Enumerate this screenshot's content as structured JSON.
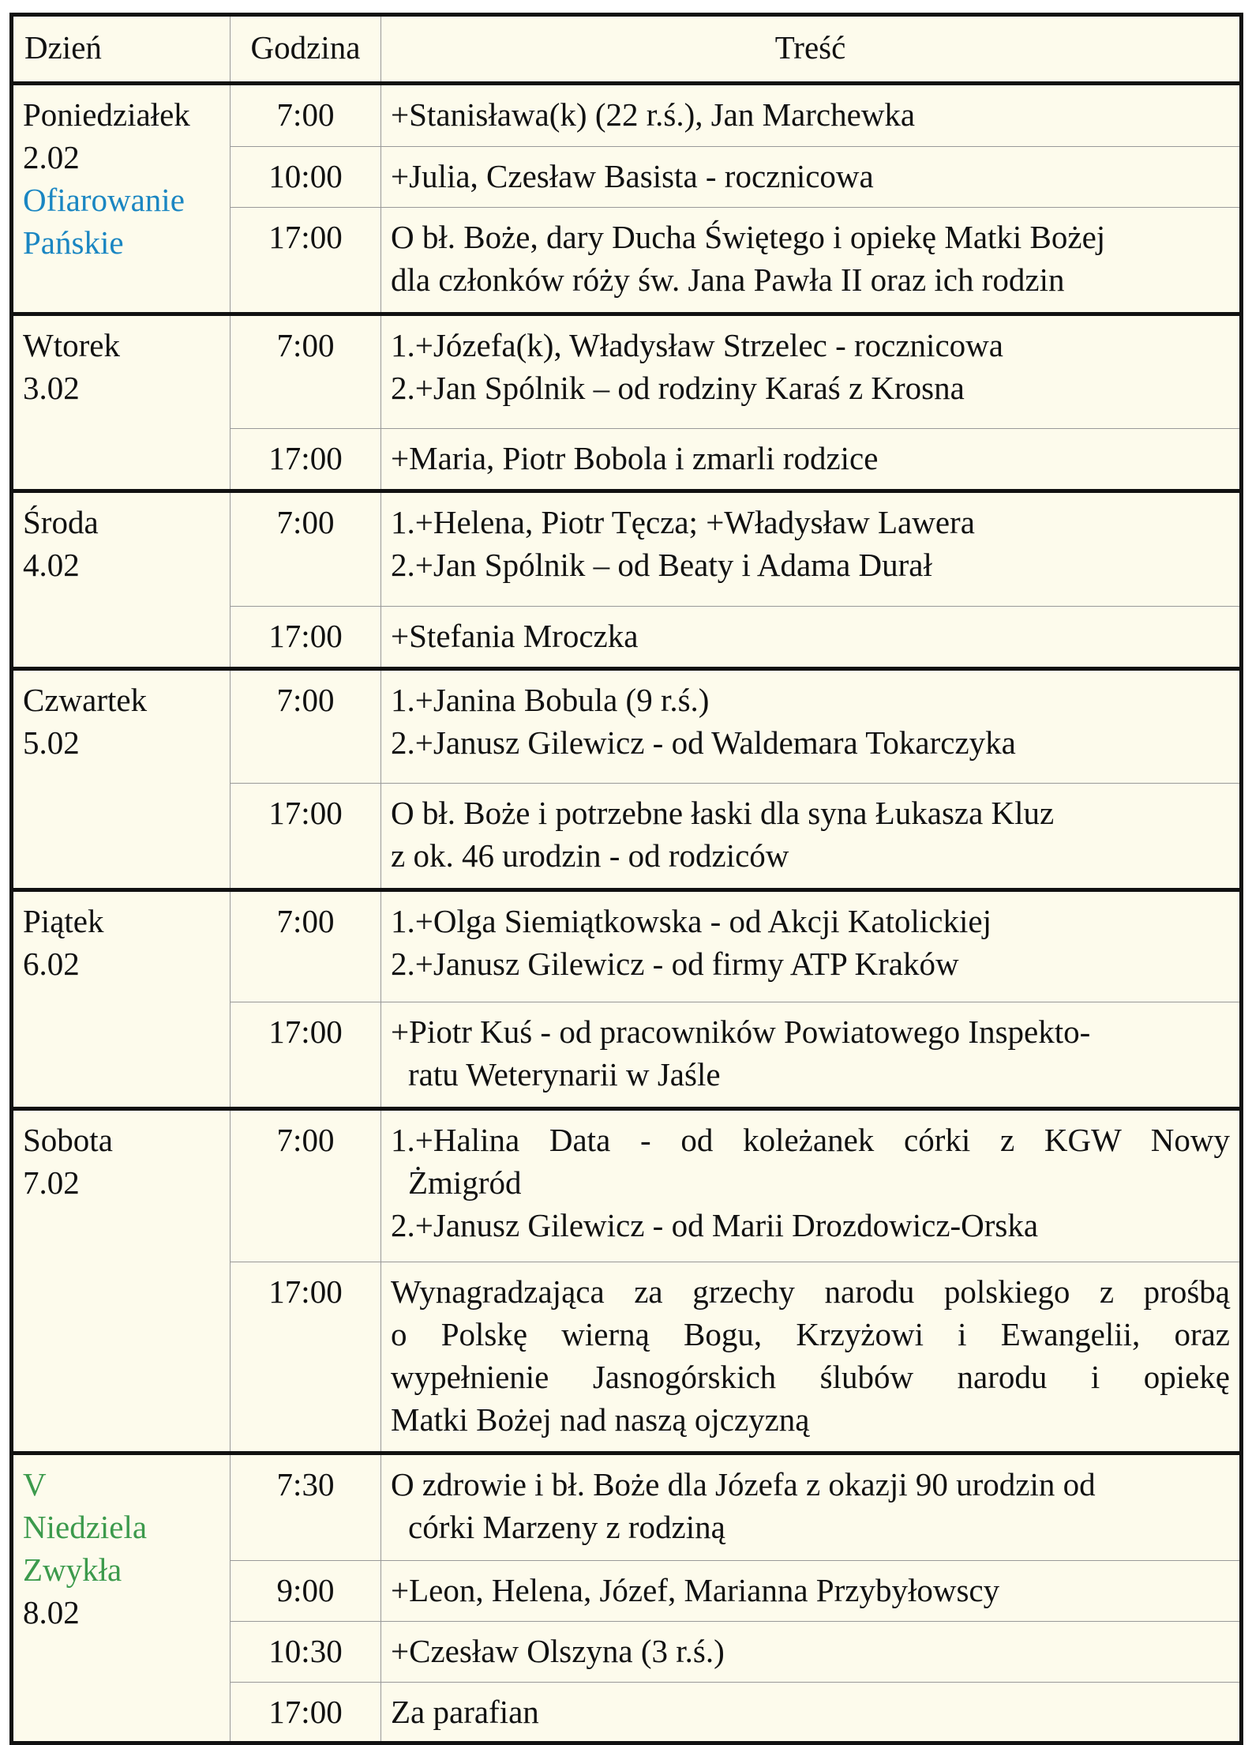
{
  "colors": {
    "feast_blue": "#1a86c2",
    "sunday_green": "#3c9a4c",
    "background": "#fdfbec"
  },
  "header": {
    "day": "Dzień",
    "hour": "Godzina",
    "content": "Treść"
  },
  "days": [
    {
      "name": [
        {
          "t": "Poniedziałek"
        },
        {
          "t": "2.02"
        },
        {
          "t": "Ofiarowanie",
          "c": "blue"
        },
        {
          "t": "Pańskie",
          "c": "blue"
        }
      ],
      "masses": [
        {
          "time": "7:00",
          "lines": [
            {
              "t": "+Stanisława(k) (22 r.ś.), Jan Marchewka"
            }
          ]
        },
        {
          "time": "10:00",
          "lines": [
            {
              "t": "+Julia, Czesław Basista - rocznicowa"
            }
          ]
        },
        {
          "time": "17:00",
          "lines": [
            {
              "t": "O bł. Boże, dary Ducha Świętego i opiekę Matki Bożej"
            },
            {
              "t": "dla członków róży św. Jana Pawła II oraz ich rodzin"
            }
          ]
        }
      ]
    },
    {
      "name": [
        {
          "t": "Wtorek"
        },
        {
          "t": "3.02"
        }
      ],
      "masses": [
        {
          "time": "7:00",
          "lines": [
            {
              "t": "1.+Józefa(k), Władysław Strzelec - rocznicowa"
            },
            {
              "t": "2.+Jan Spólnik – od rodziny Karaś z Krosna"
            }
          ]
        },
        {
          "time": "17:00",
          "lines": [
            {
              "t": "+Maria, Piotr Bobola i zmarli rodzice"
            }
          ]
        }
      ]
    },
    {
      "name": [
        {
          "t": "Środa"
        },
        {
          "t": "4.02"
        }
      ],
      "masses": [
        {
          "time": "7:00",
          "lines": [
            {
              "t": "1.+Helena, Piotr Tęcza; +Władysław Lawera"
            },
            {
              "t": "2.+Jan Spólnik – od Beaty i Adama Durał"
            }
          ]
        },
        {
          "time": "17:00",
          "lines": [
            {
              "t": "+Stefania Mroczka"
            }
          ]
        }
      ]
    },
    {
      "name": [
        {
          "t": "Czwartek"
        },
        {
          "t": "5.02"
        }
      ],
      "masses": [
        {
          "time": "7:00",
          "lines": [
            {
              "t": "1.+Janina Bobula (9 r.ś.)"
            },
            {
              "t": "2.+Janusz Gilewicz - od Waldemara Tokarczyka"
            }
          ]
        },
        {
          "time": "17:00",
          "lines": [
            {
              "t": "O bł. Boże i potrzebne łaski dla syna Łukasza Kluz"
            },
            {
              "t": "z ok. 46 urodzin - od rodziców"
            }
          ]
        }
      ]
    },
    {
      "name": [
        {
          "t": "Piątek"
        },
        {
          "t": "6.02"
        }
      ],
      "masses": [
        {
          "time": "7:00",
          "lines": [
            {
              "t": "1.+Olga Siemiątkowska - od Akcji Katolickiej"
            },
            {
              "t": "2.+Janusz Gilewicz - od firmy ATP Kraków"
            }
          ]
        },
        {
          "time": "17:00",
          "lines": [
            {
              "t": "+Piotr Kuś - od pracowników Powiatowego Inspekto-"
            },
            {
              "t": "ratu Weterynarii w Jaśle",
              "indent": true
            }
          ]
        }
      ]
    },
    {
      "name": [
        {
          "t": "Sobota"
        },
        {
          "t": "7.02"
        }
      ],
      "masses": [
        {
          "time": "7:00",
          "lines": [
            {
              "t": "1.+Halina Data - od koleżanek córki z KGW Nowy",
              "justify": true
            },
            {
              "t": "Żmigród",
              "indent": true
            },
            {
              "t": "2.+Janusz Gilewicz - od Marii Drozdowicz-Orska"
            }
          ]
        },
        {
          "time": "17:00",
          "lines": [
            {
              "t": "Wynagradzająca za grzechy narodu polskiego z prośbą",
              "justify": true
            },
            {
              "t": "o Polskę wierną Bogu, Krzyżowi i Ewangelii, oraz",
              "justify": true
            },
            {
              "t": "wypełnienie Jasnogórskich ślubów narodu i opiekę",
              "justify": true
            },
            {
              "t": "Matki Bożej nad naszą ojczyzną"
            }
          ]
        }
      ]
    },
    {
      "name": [
        {
          "t": "V",
          "c": "green"
        },
        {
          "t": "Niedziela",
          "c": "green"
        },
        {
          "t": "Zwykła",
          "c": "green"
        },
        {
          "t": "8.02"
        }
      ],
      "masses": [
        {
          "time": "7:30",
          "lines": [
            {
              "t": "O zdrowie i bł. Boże dla Józefa z okazji 90 urodzin od"
            },
            {
              "t": "córki Marzeny z rodziną",
              "indent": true
            }
          ]
        },
        {
          "time": "9:00",
          "lines": [
            {
              "t": "+Leon, Helena, Józef, Marianna Przybyłowscy"
            }
          ]
        },
        {
          "time": "10:30",
          "lines": [
            {
              "t": "+Czesław Olszyna (3 r.ś.)"
            }
          ]
        },
        {
          "time": "17:00",
          "lines": [
            {
              "t": "Za parafian"
            }
          ]
        }
      ]
    }
  ]
}
